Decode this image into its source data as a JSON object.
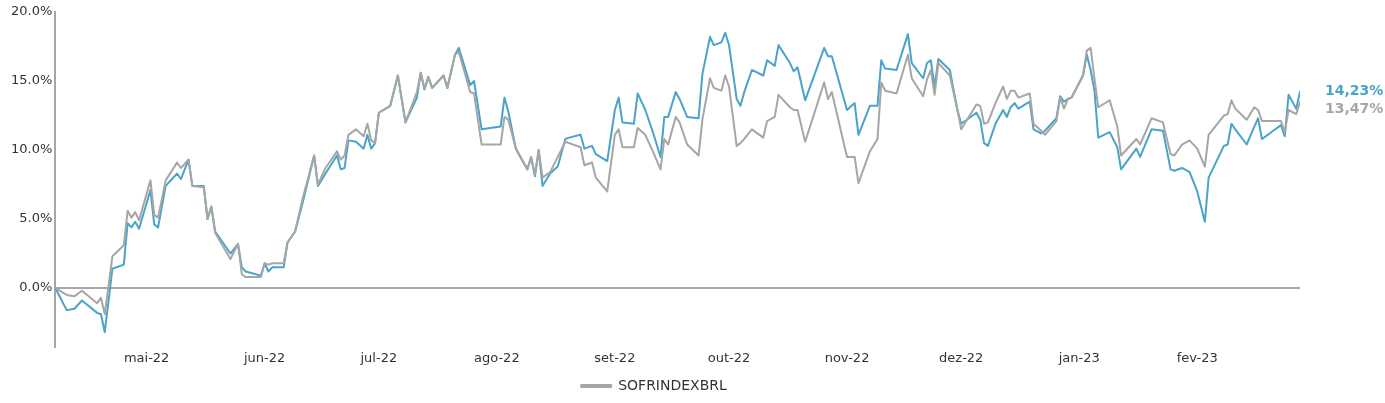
{
  "chart_data": {
    "type": "line",
    "x": [
      "2022-04-07",
      "2022-04-10",
      "2022-04-12",
      "2022-04-14",
      "2022-04-18",
      "2022-04-19",
      "2022-04-20",
      "2022-04-22",
      "2022-04-25",
      "2022-04-26",
      "2022-04-27",
      "2022-04-28",
      "2022-04-29",
      "2022-05-02",
      "2022-05-03",
      "2022-05-04",
      "2022-05-06",
      "2022-05-09",
      "2022-05-10",
      "2022-05-12",
      "2022-05-13",
      "2022-05-16",
      "2022-05-17",
      "2022-05-18",
      "2022-05-19",
      "2022-05-23",
      "2022-05-25",
      "2022-05-26",
      "2022-05-27",
      "2022-05-31",
      "2022-06-01",
      "2022-06-02",
      "2022-06-03",
      "2022-06-06",
      "2022-06-07",
      "2022-06-09",
      "2022-06-11",
      "2022-06-14",
      "2022-06-15",
      "2022-06-17",
      "2022-06-20",
      "2022-06-21",
      "2022-06-22",
      "2022-06-23",
      "2022-06-25",
      "2022-06-27",
      "2022-06-28",
      "2022-06-29",
      "2022-06-30",
      "2022-07-01",
      "2022-07-04",
      "2022-07-06",
      "2022-07-08",
      "2022-07-11",
      "2022-07-12",
      "2022-07-13",
      "2022-07-14",
      "2022-07-15",
      "2022-07-18",
      "2022-07-19",
      "2022-07-21",
      "2022-07-22",
      "2022-07-25",
      "2022-07-26",
      "2022-07-28",
      "2022-08-02",
      "2022-08-03",
      "2022-08-04",
      "2022-08-06",
      "2022-08-09",
      "2022-08-10",
      "2022-08-11",
      "2022-08-12",
      "2022-08-13",
      "2022-08-15",
      "2022-08-17",
      "2022-08-19",
      "2022-08-20",
      "2022-08-23",
      "2022-08-24",
      "2022-08-26",
      "2022-08-27",
      "2022-08-30",
      "2022-09-01",
      "2022-09-02",
      "2022-09-03",
      "2022-09-06",
      "2022-09-07",
      "2022-09-09",
      "2022-09-11",
      "2022-09-13",
      "2022-09-14",
      "2022-09-15",
      "2022-09-17",
      "2022-09-18",
      "2022-09-20",
      "2022-09-23",
      "2022-09-24",
      "2022-09-26",
      "2022-09-27",
      "2022-09-29",
      "2022-09-30",
      "2022-10-01",
      "2022-10-03",
      "2022-10-04",
      "2022-10-05",
      "2022-10-07",
      "2022-10-10",
      "2022-10-11",
      "2022-10-13",
      "2022-10-14",
      "2022-10-17",
      "2022-10-18",
      "2022-10-19",
      "2022-10-21",
      "2022-10-26",
      "2022-10-27",
      "2022-10-28",
      "2022-11-01",
      "2022-11-03",
      "2022-11-04",
      "2022-11-07",
      "2022-11-09",
      "2022-11-10",
      "2022-11-11",
      "2022-11-14",
      "2022-11-17",
      "2022-11-18",
      "2022-11-21",
      "2022-11-22",
      "2022-11-23",
      "2022-11-24",
      "2022-11-25",
      "2022-11-28",
      "2022-11-30",
      "2022-12-01",
      "2022-12-05",
      "2022-12-06",
      "2022-12-07",
      "2022-12-08",
      "2022-12-10",
      "2022-12-12",
      "2022-12-13",
      "2022-12-14",
      "2022-12-15",
      "2022-12-16",
      "2022-12-19",
      "2022-12-20",
      "2022-12-22",
      "2022-12-23",
      "2022-12-26",
      "2022-12-27",
      "2022-12-28",
      "2022-12-29",
      "2022-12-30",
      "2023-01-02",
      "2023-01-03",
      "2023-01-04",
      "2023-01-05",
      "2023-01-06",
      "2023-01-09",
      "2023-01-11",
      "2023-01-12",
      "2023-01-16",
      "2023-01-17",
      "2023-01-20",
      "2023-01-23",
      "2023-01-25",
      "2023-01-26",
      "2023-01-28",
      "2023-01-30",
      "2023-02-01",
      "2023-02-03",
      "2023-02-04",
      "2023-02-08",
      "2023-02-09",
      "2023-02-10",
      "2023-02-11",
      "2023-02-14",
      "2023-02-16",
      "2023-02-17",
      "2023-02-18",
      "2023-02-23",
      "2023-02-24",
      "2023-02-25",
      "2023-02-27",
      "2023-02-28"
    ],
    "series": [
      {
        "name": "SOFRINDEXBRL",
        "color": "#a6a6a6",
        "values": [
          0,
          -0.5,
          -0.6,
          -0.2,
          -1.1,
          -0.7,
          -1.9,
          2.3,
          3.1,
          5.6,
          5.1,
          5.5,
          4.9,
          7.8,
          5.3,
          5.1,
          7.8,
          9.1,
          8.7,
          9.3,
          7.4,
          7.3,
          5.0,
          5.9,
          4.0,
          2.1,
          3.2,
          1.0,
          0.8,
          0.8,
          1.8,
          1.7,
          1.8,
          1.8,
          3.3,
          4.1,
          6.5,
          9.6,
          7.5,
          8.7,
          9.9,
          9.3,
          9.6,
          11.1,
          11.5,
          11.0,
          11.9,
          10.7,
          10.5,
          12.7,
          13.2,
          15.4,
          12.0,
          14.2,
          15.6,
          14.4,
          15.3,
          14.5,
          15.4,
          14.5,
          16.9,
          17.1,
          14.2,
          14.1,
          10.4,
          10.4,
          12.4,
          12.2,
          10.1,
          8.6,
          9.5,
          8.2,
          10.0,
          8.0,
          8.4,
          9.5,
          10.6,
          10.5,
          10.2,
          8.9,
          9.1,
          8.0,
          7.0,
          11.1,
          11.5,
          10.2,
          10.2,
          11.6,
          11.1,
          9.9,
          8.6,
          10.8,
          10.4,
          12.4,
          12.0,
          10.4,
          9.6,
          12.2,
          15.2,
          14.5,
          14.3,
          15.4,
          14.6,
          10.3,
          10.5,
          10.8,
          11.5,
          10.9,
          12.1,
          12.4,
          14.0,
          13.1,
          12.9,
          12.9,
          10.6,
          14.9,
          13.7,
          14.2,
          9.5,
          9.5,
          7.6,
          9.9,
          10.8,
          14.9,
          14.3,
          14.1,
          16.9,
          15.2,
          13.9,
          15.1,
          15.8,
          14.0,
          16.3,
          15.4,
          12.9,
          11.5,
          13.3,
          13.2,
          11.9,
          12.0,
          13.4,
          14.6,
          13.7,
          14.3,
          14.3,
          13.8,
          14.1,
          11.9,
          11.4,
          11.1,
          12.1,
          13.8,
          13.0,
          13.7,
          13.8,
          15.4,
          17.2,
          17.4,
          15.2,
          13.1,
          13.6,
          11.7,
          9.6,
          10.8,
          10.4,
          12.3,
          12.0,
          9.7,
          9.6,
          10.4,
          10.7,
          10.1,
          8.8,
          11.1,
          12.5,
          12.6,
          13.6,
          13.0,
          12.2,
          13.1,
          12.9,
          12.1,
          12.1,
          11.3,
          12.9,
          12.6,
          13.47
        ]
      },
      {
        "color": "#4aa3c8",
        "values": [
          0,
          -1.6,
          -1.5,
          -0.9,
          -1.8,
          -1.9,
          -3.2,
          1.4,
          1.7,
          4.7,
          4.4,
          4.8,
          4.3,
          7.1,
          4.6,
          4.4,
          7.4,
          8.3,
          7.9,
          9.3,
          7.4,
          7.4,
          5.0,
          5.9,
          4.1,
          2.5,
          3.2,
          1.5,
          1.2,
          0.9,
          1.8,
          1.2,
          1.5,
          1.5,
          3.3,
          4.1,
          6.2,
          9.6,
          7.4,
          8.3,
          9.6,
          8.6,
          8.7,
          10.7,
          10.6,
          10.1,
          11.1,
          10.1,
          10.5,
          12.7,
          13.2,
          15.4,
          12.0,
          13.8,
          15.6,
          14.4,
          15.3,
          14.5,
          15.4,
          14.5,
          16.9,
          17.4,
          14.7,
          15.0,
          11.5,
          11.7,
          13.8,
          12.8,
          10.1,
          8.6,
          9.5,
          8.1,
          10.0,
          7.4,
          8.3,
          8.8,
          10.8,
          10.9,
          11.1,
          10.1,
          10.3,
          9.7,
          9.2,
          12.9,
          13.8,
          12.0,
          11.9,
          14.1,
          12.9,
          11.3,
          9.5,
          12.4,
          12.4,
          14.2,
          13.7,
          12.4,
          12.3,
          15.5,
          18.2,
          17.6,
          17.8,
          18.5,
          17.6,
          13.7,
          13.2,
          14.2,
          15.8,
          15.4,
          16.5,
          16.1,
          17.6,
          16.3,
          15.7,
          16.0,
          13.6,
          17.4,
          16.8,
          16.8,
          12.9,
          13.4,
          11.1,
          13.2,
          13.2,
          16.5,
          15.9,
          15.8,
          18.4,
          16.3,
          15.2,
          16.3,
          16.5,
          14.6,
          16.6,
          15.8,
          12.9,
          11.9,
          12.7,
          12.2,
          10.5,
          10.3,
          11.9,
          12.9,
          12.4,
          13.1,
          13.4,
          13.0,
          13.5,
          11.5,
          11.2,
          11.4,
          12.3,
          13.9,
          13.5,
          13.7,
          13.8,
          15.4,
          16.9,
          15.8,
          14.3,
          10.9,
          11.3,
          10.2,
          8.6,
          10.1,
          9.5,
          11.5,
          11.4,
          8.6,
          8.5,
          8.7,
          8.4,
          7.0,
          4.8,
          8.0,
          10.3,
          10.4,
          11.9,
          11.5,
          10.4,
          11.7,
          12.3,
          10.8,
          11.8,
          11.0,
          14.0,
          13.0,
          14.23
        ]
      }
    ],
    "xlim": [
      "2022-04-07",
      "2023-02-28"
    ],
    "xticks": [
      {
        "value": "2022-05-01",
        "label": "mai-22"
      },
      {
        "value": "2022-06-01",
        "label": "jun-22"
      },
      {
        "value": "2022-07-01",
        "label": "jul-22"
      },
      {
        "value": "2022-08-01",
        "label": "ago-22"
      },
      {
        "value": "2022-09-01",
        "label": "set-22"
      },
      {
        "value": "2022-10-01",
        "label": "out-22"
      },
      {
        "value": "2022-11-01",
        "label": "nov-22"
      },
      {
        "value": "2022-12-01",
        "label": "dez-22"
      },
      {
        "value": "2023-01-01",
        "label": "jan-23"
      },
      {
        "value": "2023-02-01",
        "label": "fev-23"
      }
    ],
    "ylim": [
      -4.3,
      20
    ],
    "yticks": [
      {
        "value": 0,
        "label": "0.0%"
      },
      {
        "value": 5,
        "label": "5.0%"
      },
      {
        "value": 10,
        "label": "10.0%"
      },
      {
        "value": 15,
        "label": "15.0%"
      },
      {
        "value": 20,
        "label": "20.0%"
      }
    ],
    "ref_lines": [
      {
        "axis": "y",
        "value": 0,
        "color": "#a6a6a6"
      }
    ],
    "annotations": [
      {
        "text": "14,23%",
        "x": "2023-02-28",
        "y": 14.23
      },
      {
        "text": "13,47%",
        "x": "2023-02-28",
        "y": 13.47
      }
    ],
    "legend": "bottom",
    "grid": false,
    "marker": "none",
    "line_style": "solid"
  }
}
